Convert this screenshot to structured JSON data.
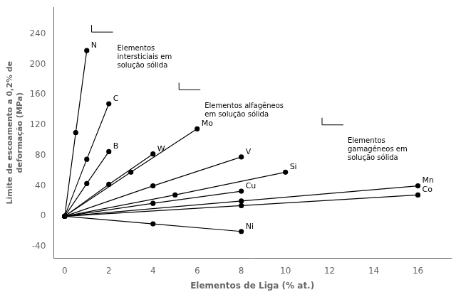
{
  "chart_data": {
    "type": "line",
    "xlabel": "Elementos de Liga (% at.)",
    "ylabel": "Limite de escoamento a 0,2% de\ndeformação (MPa)",
    "xlim": [
      -0.5,
      17.5
    ],
    "ylim": [
      -55,
      275
    ],
    "xticks": [
      0,
      2,
      4,
      6,
      8,
      10,
      12,
      14,
      16
    ],
    "yticks": [
      -40,
      0,
      40,
      80,
      120,
      160,
      200,
      240
    ],
    "grid": false,
    "color": "#000000",
    "marker": "circle",
    "line_style": "solid",
    "series": [
      {
        "name": "N",
        "x": [
          0,
          0.5,
          1.0
        ],
        "values": [
          0,
          110,
          218
        ]
      },
      {
        "name": "C",
        "x": [
          0,
          1.0,
          2.0
        ],
        "values": [
          0,
          75,
          148
        ]
      },
      {
        "name": "B",
        "x": [
          0,
          1.0,
          2.0
        ],
        "values": [
          0,
          43,
          85
        ]
      },
      {
        "name": "W",
        "x": [
          0,
          2.0,
          4.0
        ],
        "values": [
          0,
          42,
          82
        ]
      },
      {
        "name": "Mo",
        "x": [
          0,
          3.0,
          6.0
        ],
        "values": [
          0,
          58,
          115
        ]
      },
      {
        "name": "V",
        "x": [
          0,
          4.0,
          8.0
        ],
        "values": [
          0,
          40,
          78
        ]
      },
      {
        "name": "Si",
        "x": [
          0,
          5.0,
          10.0
        ],
        "values": [
          0,
          28,
          58
        ]
      },
      {
        "name": "Cu",
        "x": [
          0,
          4.0,
          8.0
        ],
        "values": [
          0,
          17,
          33
        ]
      },
      {
        "name": "Mn",
        "x": [
          0,
          8.0,
          16.0
        ],
        "values": [
          0,
          20,
          40
        ]
      },
      {
        "name": "Co",
        "x": [
          0,
          8.0,
          16.0
        ],
        "values": [
          0,
          14,
          28
        ]
      },
      {
        "name": "Ni",
        "x": [
          0,
          4.0,
          8.0
        ],
        "values": [
          0,
          -10,
          -20
        ]
      }
    ],
    "annotations": [
      "Elementos\nintersticiais em\nsolução sólida",
      "Elementos alfagêneos\nem solução sólida",
      "Elementos\ngamagêneos em\nsolução sólida"
    ]
  }
}
